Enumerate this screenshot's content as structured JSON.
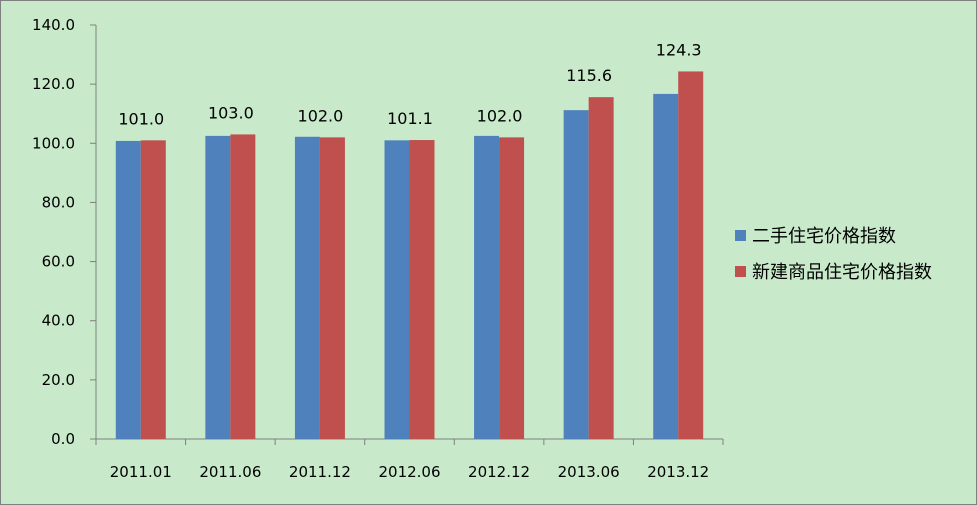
{
  "chart_data": {
    "type": "bar",
    "categories": [
      "2011.01",
      "2011.06",
      "2011.12",
      "2012.06",
      "2012.12",
      "2013.06",
      "2013.12"
    ],
    "series": [
      {
        "name": "二手住宅价格指数",
        "values": [
          100.8,
          102.5,
          102.2,
          101.0,
          102.5,
          111.2,
          116.7
        ],
        "color": "#4f81bd"
      },
      {
        "name": "新建商品住宅价格指数",
        "values": [
          101.0,
          103.0,
          102.0,
          101.1,
          102.0,
          115.6,
          124.3
        ],
        "color": "#c0504d"
      }
    ],
    "data_labels": [
      "101.0",
      "103.0",
      "102.0",
      "101.1",
      "102.0",
      "115.6",
      "124.3"
    ],
    "y_ticks": [
      "0.0",
      "20.0",
      "40.0",
      "60.0",
      "80.0",
      "100.0",
      "120.0",
      "140.0"
    ],
    "ylim": [
      0,
      140
    ],
    "grid": false,
    "legend_position": "right",
    "title": "",
    "xlabel": "",
    "ylabel": ""
  }
}
